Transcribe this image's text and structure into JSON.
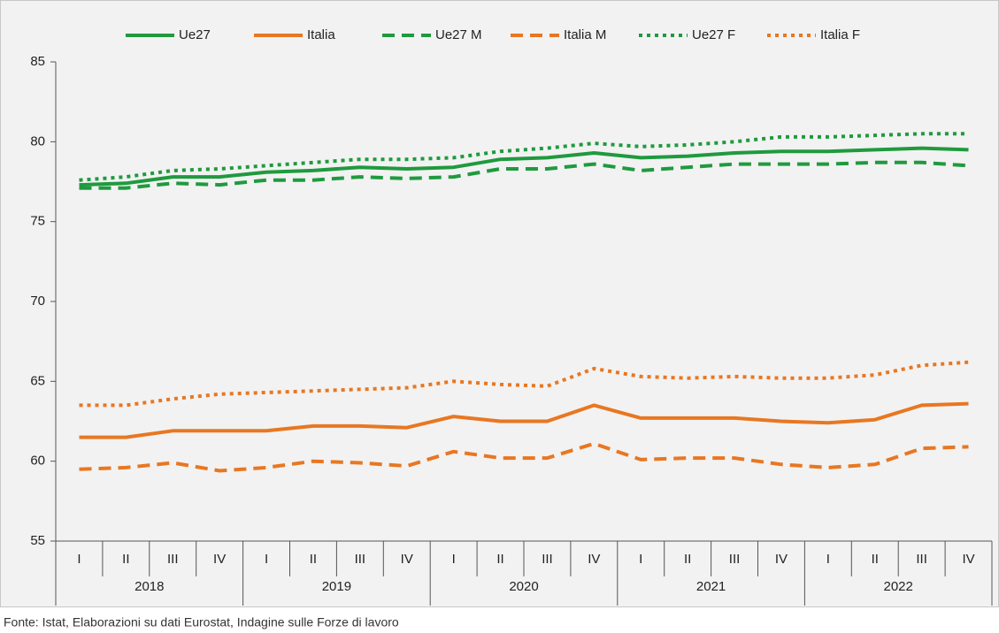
{
  "chart_data": {
    "type": "line",
    "categories": [
      "I",
      "II",
      "III",
      "IV",
      "I",
      "II",
      "III",
      "IV",
      "I",
      "II",
      "III",
      "IV",
      "I",
      "II",
      "III",
      "IV",
      "I",
      "II",
      "III",
      "IV"
    ],
    "groups": [
      "2018",
      "2019",
      "2020",
      "2021",
      "2022"
    ],
    "series": [
      {
        "name": "Ue27",
        "color": "#1f9a3e",
        "dash": "solid",
        "values": [
          77.3,
          77.4,
          77.8,
          77.8,
          78.1,
          78.2,
          78.4,
          78.3,
          78.4,
          78.9,
          79.0,
          79.3,
          79.0,
          79.1,
          79.3,
          79.4,
          79.4,
          79.5,
          79.6,
          79.5
        ]
      },
      {
        "name": "Italia",
        "color": "#e87722",
        "dash": "solid",
        "values": [
          61.5,
          61.5,
          61.9,
          61.9,
          61.9,
          62.2,
          62.2,
          62.1,
          62.8,
          62.5,
          62.5,
          63.5,
          62.7,
          62.7,
          62.7,
          62.5,
          62.4,
          62.6,
          63.5,
          63.6
        ]
      },
      {
        "name": "Ue27 M",
        "color": "#1f9a3e",
        "dash": "dashed",
        "values": [
          77.1,
          77.1,
          77.4,
          77.3,
          77.6,
          77.6,
          77.8,
          77.7,
          77.8,
          78.3,
          78.3,
          78.6,
          78.2,
          78.4,
          78.6,
          78.6,
          78.6,
          78.7,
          78.7,
          78.5
        ]
      },
      {
        "name": "Italia M",
        "color": "#e87722",
        "dash": "dashed",
        "values": [
          59.5,
          59.6,
          59.9,
          59.4,
          59.6,
          60.0,
          59.9,
          59.7,
          60.6,
          60.2,
          60.2,
          61.1,
          60.1,
          60.2,
          60.2,
          59.8,
          59.6,
          59.8,
          60.8,
          60.9
        ]
      },
      {
        "name": "Ue27 F",
        "color": "#1f9a3e",
        "dash": "dotted",
        "values": [
          77.6,
          77.8,
          78.2,
          78.3,
          78.5,
          78.7,
          78.9,
          78.9,
          79.0,
          79.4,
          79.6,
          79.9,
          79.7,
          79.8,
          80.0,
          80.3,
          80.3,
          80.4,
          80.5,
          80.5
        ]
      },
      {
        "name": "Italia F",
        "color": "#e87722",
        "dash": "dotted",
        "values": [
          63.5,
          63.5,
          63.9,
          64.2,
          64.3,
          64.4,
          64.5,
          64.6,
          65.0,
          64.8,
          64.7,
          65.8,
          65.3,
          65.2,
          65.3,
          65.2,
          65.2,
          65.4,
          66.0,
          66.2
        ]
      }
    ],
    "ylim": [
      55,
      85
    ],
    "yticks": [
      55,
      60,
      65,
      70,
      75,
      80,
      85
    ],
    "legend": "top",
    "source": "Fonte: Istat, Elaborazioni su dati Eurostat, Indagine sulle Forze di lavoro"
  }
}
